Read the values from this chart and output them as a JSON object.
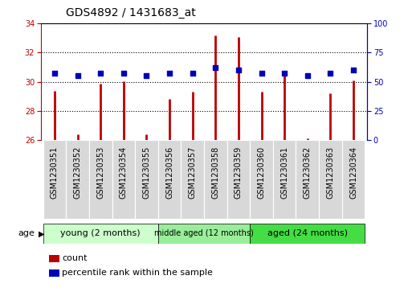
{
  "title": "GDS4892 / 1431683_at",
  "samples": [
    "GSM1230351",
    "GSM1230352",
    "GSM1230353",
    "GSM1230354",
    "GSM1230355",
    "GSM1230356",
    "GSM1230357",
    "GSM1230358",
    "GSM1230359",
    "GSM1230360",
    "GSM1230361",
    "GSM1230362",
    "GSM1230363",
    "GSM1230364"
  ],
  "counts": [
    29.35,
    26.4,
    29.85,
    30.05,
    26.4,
    28.85,
    29.3,
    33.2,
    33.05,
    29.3,
    30.45,
    26.1,
    29.2,
    30.1
  ],
  "percentile_ranks": [
    57,
    55,
    57,
    57,
    55,
    57,
    57,
    62,
    60,
    57,
    57,
    55,
    57,
    60
  ],
  "ylim_left": [
    26,
    34
  ],
  "ylim_right": [
    0,
    100
  ],
  "yticks_left": [
    26,
    28,
    30,
    32,
    34
  ],
  "yticks_right": [
    0,
    25,
    50,
    75,
    100
  ],
  "bar_color": "#bb0000",
  "dot_color": "#0000bb",
  "groups": [
    {
      "label": "young (2 months)",
      "start": 0,
      "end": 4,
      "color": "#ccffcc"
    },
    {
      "label": "middle aged (12 months)",
      "start": 5,
      "end": 8,
      "color": "#99ee99"
    },
    {
      "label": "aged (24 months)",
      "start": 9,
      "end": 13,
      "color": "#44dd44"
    }
  ],
  "legend_count_label": "count",
  "legend_pct_label": "percentile rank within the sample",
  "age_label": "age",
  "background_color": "#ffffff",
  "plot_bg_color": "#ffffff",
  "xticklabel_bg": "#d8d8d8",
  "title_fontsize": 10,
  "tick_fontsize": 7,
  "label_fontsize": 8,
  "group_label_fontsize": 8
}
